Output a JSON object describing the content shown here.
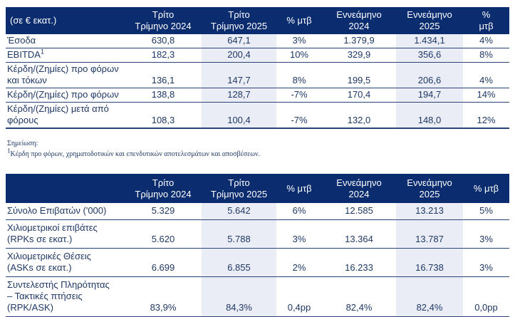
{
  "colors": {
    "header_bg": "#0B2D6F",
    "body_text": "#1F3864",
    "shade": "#EAEDF6",
    "border": "#2A4377"
  },
  "table1": {
    "corner_label": "(σε € εκατ.)",
    "headers": {
      "q3_2024": "Τρίτο\nΤρίμηνο 2024",
      "q3_2025": "Τρίτο\nΤρίμηνο 2025",
      "chg_q": "% μτβ",
      "nine_2024": "Εννεάμηνο\n2024",
      "nine_2025": "Εννεάμηνο\n2025",
      "chg_nine": "%\nμτβ"
    },
    "rows": [
      {
        "label": "Έσοδα",
        "values": [
          "630,8",
          "647,1",
          "3%",
          "1.379,9",
          "1.434,1",
          "4%"
        ]
      },
      {
        "label": "EBITDA",
        "footnote_ref": "1",
        "values": [
          "182,3",
          "200,4",
          "10%",
          "329,9",
          "356,6",
          "8%"
        ]
      },
      {
        "label": "Κέρδη/(Ζημίες) προ φόρων\nκαι τόκων",
        "values": [
          "136,1",
          "147,7",
          "8%",
          "199,5",
          "206,6",
          "4%"
        ]
      },
      {
        "label": "Κέρδη/(Ζημίες) προ φόρων",
        "values": [
          "138,8",
          "128,7",
          "-7%",
          "170,4",
          "194,7",
          "14%"
        ]
      },
      {
        "label": "Κέρδη/(Ζημίες) μετά από\nφόρους",
        "values": [
          "108,3",
          "100,4",
          "-7%",
          "132,0",
          "148,0",
          "12%"
        ]
      }
    ]
  },
  "footnote": {
    "heading": "Σημείωση:",
    "ref": "1",
    "text": "Κέρδη προ φόρων, χρηματοδοτικών και επενδυτικών αποτελεσμάτων και αποσβέσεων."
  },
  "table2": {
    "corner_label": "",
    "headers": {
      "q3_2024": "Τρίτο\nΤρίμηνο 2024",
      "q3_2025": "Τρίτο\nΤρίμηνο 2025",
      "chg_q": "% μτβ",
      "nine_2024": "Εννεάμηνο\n2024",
      "nine_2025": "Εννεάμηνο\n2025",
      "chg_nine": "% μτβ"
    },
    "rows": [
      {
        "label": "Σύνολο Επιβατών ('000)",
        "values": [
          "5.329",
          "5.642",
          "6%",
          "12.585",
          "13.213",
          "5%"
        ]
      },
      {
        "label": "Χιλιομετρικοί επιβάτες\n(RPKs σε εκατ.)",
        "values": [
          "5.620",
          "5.788",
          "3%",
          "13.364",
          "13.787",
          "3%"
        ]
      },
      {
        "label": "Χιλιομετρικές Θέσεις\n(ASKs σε εκατ.)",
        "values": [
          "6.699",
          "6.855",
          "2%",
          "16.233",
          "16.738",
          "3%"
        ]
      },
      {
        "label": "Συντελεστής Πληρότητας\n– Τακτικές πτήσεις\n(RPK/ASK)",
        "values": [
          "83,9%",
          "84,3%",
          "0,4pp",
          "82,4%",
          "82,4%",
          "0,0pp"
        ]
      }
    ]
  }
}
